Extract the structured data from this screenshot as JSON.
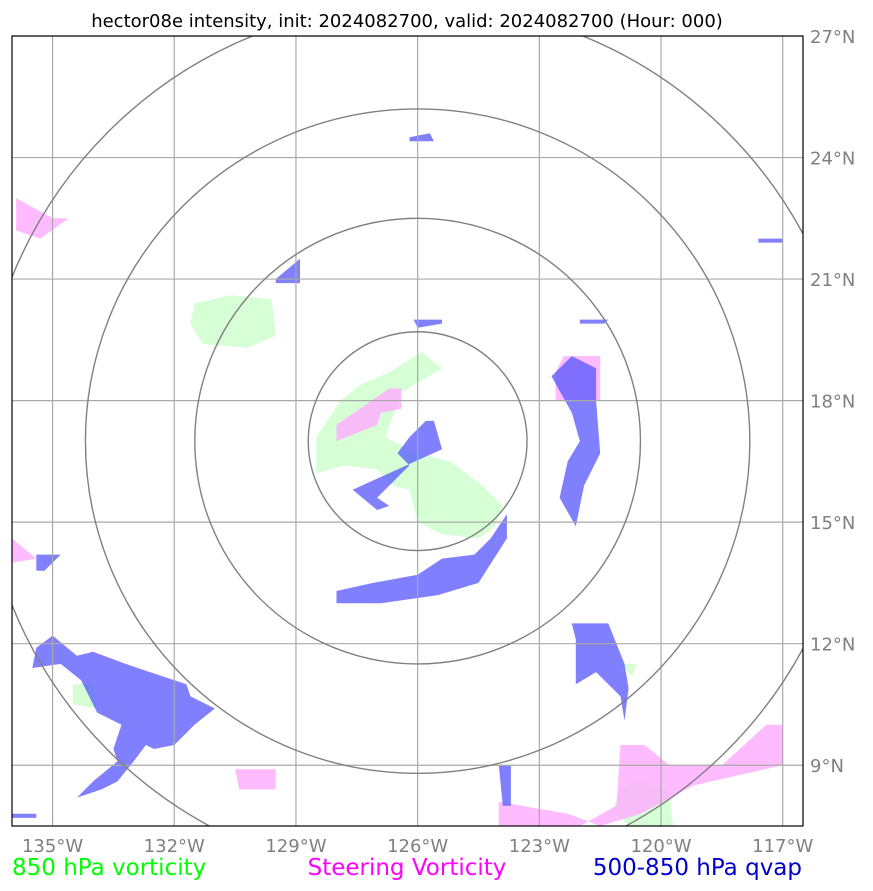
{
  "title": "hector08e intensity, init: 2024082700, valid: 2024082700 (Hour: 000)",
  "map": {
    "lon_range": [
      -136,
      -116.5
    ],
    "lat_range": [
      7.5,
      27
    ],
    "center": {
      "lon": -126,
      "lat": 17
    },
    "range_rings": [
      {
        "radius_deg_lat": 2.7
      },
      {
        "radius_deg_lat": 5.5
      },
      {
        "radius_deg_lat": 8.2
      },
      {
        "radius_deg_lat": 10.8
      }
    ],
    "lon_ticks": [
      {
        "value": -135,
        "label": "135°W"
      },
      {
        "value": -132,
        "label": "132°W"
      },
      {
        "value": -129,
        "label": "129°W"
      },
      {
        "value": -126,
        "label": "126°W"
      },
      {
        "value": -123,
        "label": "123°W"
      },
      {
        "value": -120,
        "label": "120°W"
      },
      {
        "value": -117,
        "label": "117°W"
      }
    ],
    "lat_ticks": [
      {
        "value": 27,
        "label": "27°N"
      },
      {
        "value": 24,
        "label": "24°N"
      },
      {
        "value": 21,
        "label": "21°N"
      },
      {
        "value": 18,
        "label": "18°N"
      },
      {
        "value": 15,
        "label": "15°N"
      },
      {
        "value": 12,
        "label": "12°N"
      },
      {
        "value": 9,
        "label": "9°N"
      }
    ],
    "grid": true,
    "colors": {
      "grid": "#a9a9a9",
      "ring": "#808080",
      "vort850": "#ccffcc",
      "steering": "#ffaaff",
      "qvap": "#5555ff"
    }
  },
  "fields": {
    "vort850": [
      [
        [
          -131.5,
          20.4
        ],
        [
          -130.6,
          20.6
        ],
        [
          -129.6,
          20.5
        ],
        [
          -129.5,
          19.6
        ],
        [
          -130.2,
          19.3
        ],
        [
          -131.3,
          19.4
        ],
        [
          -131.6,
          19.9
        ]
      ],
      [
        [
          -126.7,
          18.7
        ],
        [
          -125.9,
          19.2
        ],
        [
          -125.4,
          18.8
        ],
        [
          -126.4,
          18.2
        ],
        [
          -126.8,
          17.1
        ],
        [
          -126.0,
          16.7
        ],
        [
          -125.2,
          16.5
        ],
        [
          -124.4,
          15.9
        ],
        [
          -123.9,
          15.4
        ],
        [
          -124.1,
          14.9
        ],
        [
          -124.5,
          14.6
        ],
        [
          -125.4,
          14.7
        ],
        [
          -126.0,
          15.0
        ],
        [
          -126.2,
          15.8
        ],
        [
          -126.6,
          15.9
        ],
        [
          -127.0,
          16.3
        ],
        [
          -127.8,
          16.4
        ],
        [
          -128.5,
          16.2
        ],
        [
          -128.5,
          17.1
        ],
        [
          -127.9,
          18.0
        ],
        [
          -127.4,
          18.4
        ]
      ],
      [
        [
          -134.5,
          11.0
        ],
        [
          -134.0,
          11.0
        ],
        [
          -133.9,
          10.4
        ],
        [
          -134.5,
          10.5
        ]
      ],
      [
        [
          -121.0,
          11.5
        ],
        [
          -120.6,
          11.5
        ],
        [
          -120.7,
          11.2
        ]
      ],
      [
        [
          -121.0,
          8.4
        ],
        [
          -120.6,
          8.6
        ],
        [
          -119.8,
          8.4
        ],
        [
          -119.7,
          7.5
        ],
        [
          -120.8,
          7.5
        ],
        [
          -121.2,
          7.9
        ]
      ]
    ],
    "steering": [
      [
        [
          -135.9,
          23.0
        ],
        [
          -135.0,
          22.5
        ],
        [
          -134.6,
          22.5
        ],
        [
          -135.3,
          22.0
        ],
        [
          -135.9,
          22.2
        ]
      ],
      [
        [
          -126.4,
          18.3
        ],
        [
          -126.4,
          17.8
        ],
        [
          -126.9,
          17.7
        ],
        [
          -127.0,
          17.4
        ],
        [
          -128.0,
          17.0
        ],
        [
          -128.0,
          17.4
        ],
        [
          -126.7,
          18.3
        ]
      ],
      [
        [
          -122.4,
          19.1
        ],
        [
          -121.5,
          19.1
        ],
        [
          -121.5,
          18.0
        ],
        [
          -122.6,
          18.0
        ],
        [
          -122.6,
          18.7
        ]
      ],
      [
        [
          -136.0,
          14.6
        ],
        [
          -135.4,
          14.1
        ],
        [
          -136.0,
          14.0
        ]
      ],
      [
        [
          -121.0,
          9.5
        ],
        [
          -120.4,
          9.5
        ],
        [
          -119.8,
          9.0
        ],
        [
          -118.5,
          9.0
        ],
        [
          -117.4,
          10.0
        ],
        [
          -117.0,
          10.0
        ],
        [
          -117.0,
          9.0
        ],
        [
          -119.2,
          8.5
        ],
        [
          -120.5,
          7.8
        ],
        [
          -121.5,
          7.5
        ],
        [
          -122.3,
          7.8
        ],
        [
          -124.0,
          8.1
        ],
        [
          -124.0,
          7.5
        ],
        [
          -122.0,
          7.5
        ],
        [
          -121.1,
          8.0
        ]
      ],
      [
        [
          -130.5,
          8.9
        ],
        [
          -129.5,
          8.9
        ],
        [
          -129.5,
          8.4
        ],
        [
          -130.4,
          8.4
        ]
      ]
    ],
    "qvap": [
      [
        [
          -129.5,
          21.0
        ],
        [
          -128.9,
          21.5
        ],
        [
          -128.9,
          20.9
        ],
        [
          -129.5,
          20.9
        ]
      ],
      [
        [
          -122.2,
          19.1
        ],
        [
          -121.6,
          18.8
        ],
        [
          -121.6,
          18.0
        ],
        [
          -121.5,
          16.7
        ],
        [
          -121.9,
          15.9
        ],
        [
          -122.1,
          14.9
        ],
        [
          -122.5,
          15.6
        ],
        [
          -122.3,
          16.5
        ],
        [
          -122.0,
          17.0
        ],
        [
          -122.2,
          17.7
        ],
        [
          -122.7,
          18.6
        ]
      ],
      [
        [
          -125.4,
          16.8
        ],
        [
          -125.6,
          17.5
        ],
        [
          -125.8,
          17.5
        ],
        [
          -126.2,
          17.1
        ],
        [
          -126.5,
          16.7
        ],
        [
          -126.2,
          16.4
        ],
        [
          -127.0,
          15.6
        ],
        [
          -126.7,
          15.4
        ],
        [
          -127.0,
          15.3
        ],
        [
          -127.6,
          15.8
        ]
      ],
      [
        [
          -128.0,
          13.3
        ],
        [
          -127.1,
          13.5
        ],
        [
          -126.0,
          13.7
        ],
        [
          -125.4,
          14.1
        ],
        [
          -124.6,
          14.2
        ],
        [
          -124.2,
          14.6
        ],
        [
          -123.8,
          15.2
        ],
        [
          -123.8,
          14.6
        ],
        [
          -124.5,
          13.5
        ],
        [
          -125.5,
          13.2
        ],
        [
          -126.9,
          13.0
        ],
        [
          -128.0,
          13.0
        ]
      ],
      [
        [
          -122.2,
          12.5
        ],
        [
          -121.3,
          12.5
        ],
        [
          -120.9,
          11.5
        ],
        [
          -120.8,
          10.9
        ],
        [
          -120.9,
          10.1
        ],
        [
          -121.0,
          10.7
        ],
        [
          -121.6,
          11.3
        ],
        [
          -122.1,
          11.0
        ],
        [
          -122.1,
          12.1
        ]
      ],
      [
        [
          -135.4,
          11.9
        ],
        [
          -135.0,
          12.2
        ],
        [
          -134.4,
          11.7
        ],
        [
          -134.0,
          11.8
        ],
        [
          -133.2,
          11.5
        ],
        [
          -132.6,
          11.3
        ],
        [
          -131.7,
          11.0
        ],
        [
          -131.6,
          10.7
        ],
        [
          -131.0,
          10.4
        ],
        [
          -131.5,
          10.0
        ],
        [
          -132.0,
          9.5
        ],
        [
          -132.5,
          9.4
        ],
        [
          -132.7,
          9.5
        ],
        [
          -133.0,
          9.1
        ],
        [
          -133.4,
          8.6
        ],
        [
          -133.8,
          8.4
        ],
        [
          -134.4,
          8.2
        ],
        [
          -134.0,
          8.6
        ],
        [
          -133.4,
          9.1
        ],
        [
          -133.5,
          9.4
        ],
        [
          -133.3,
          10.0
        ],
        [
          -133.9,
          10.3
        ],
        [
          -134.3,
          11.1
        ],
        [
          -134.8,
          11.5
        ],
        [
          -135.5,
          11.4
        ]
      ],
      [
        [
          -126.1,
          20.0
        ],
        [
          -125.4,
          20.0
        ],
        [
          -125.4,
          19.9
        ],
        [
          -126.0,
          19.8
        ]
      ],
      [
        [
          -126.2,
          24.5
        ],
        [
          -125.7,
          24.6
        ],
        [
          -125.6,
          24.4
        ],
        [
          -126.2,
          24.4
        ]
      ],
      [
        [
          -122.0,
          19.9
        ],
        [
          -121.4,
          19.9
        ],
        [
          -121.3,
          20.0
        ],
        [
          -122.0,
          20.0
        ]
      ],
      [
        [
          -124.0,
          9.0
        ],
        [
          -123.7,
          9.0
        ],
        [
          -123.7,
          8.0
        ],
        [
          -123.9,
          8.0
        ]
      ],
      [
        [
          -135.4,
          14.2
        ],
        [
          -134.8,
          14.2
        ],
        [
          -135.2,
          13.8
        ],
        [
          -135.4,
          13.8
        ]
      ],
      [
        [
          -117.6,
          22.0
        ],
        [
          -117.0,
          22.0
        ],
        [
          -117.0,
          21.9
        ],
        [
          -117.6,
          21.9
        ]
      ],
      [
        [
          -136.0,
          7.8
        ],
        [
          -135.4,
          7.8
        ],
        [
          -135.4,
          7.7
        ],
        [
          -136.0,
          7.7
        ]
      ]
    ]
  },
  "legend": [
    {
      "label": "850 hPa vorticity",
      "color": "#00ff00"
    },
    {
      "label": "Steering Vorticity",
      "color": "#ff00ff"
    },
    {
      "label": "500-850 hPa qvap",
      "color": "#0000cc"
    }
  ]
}
